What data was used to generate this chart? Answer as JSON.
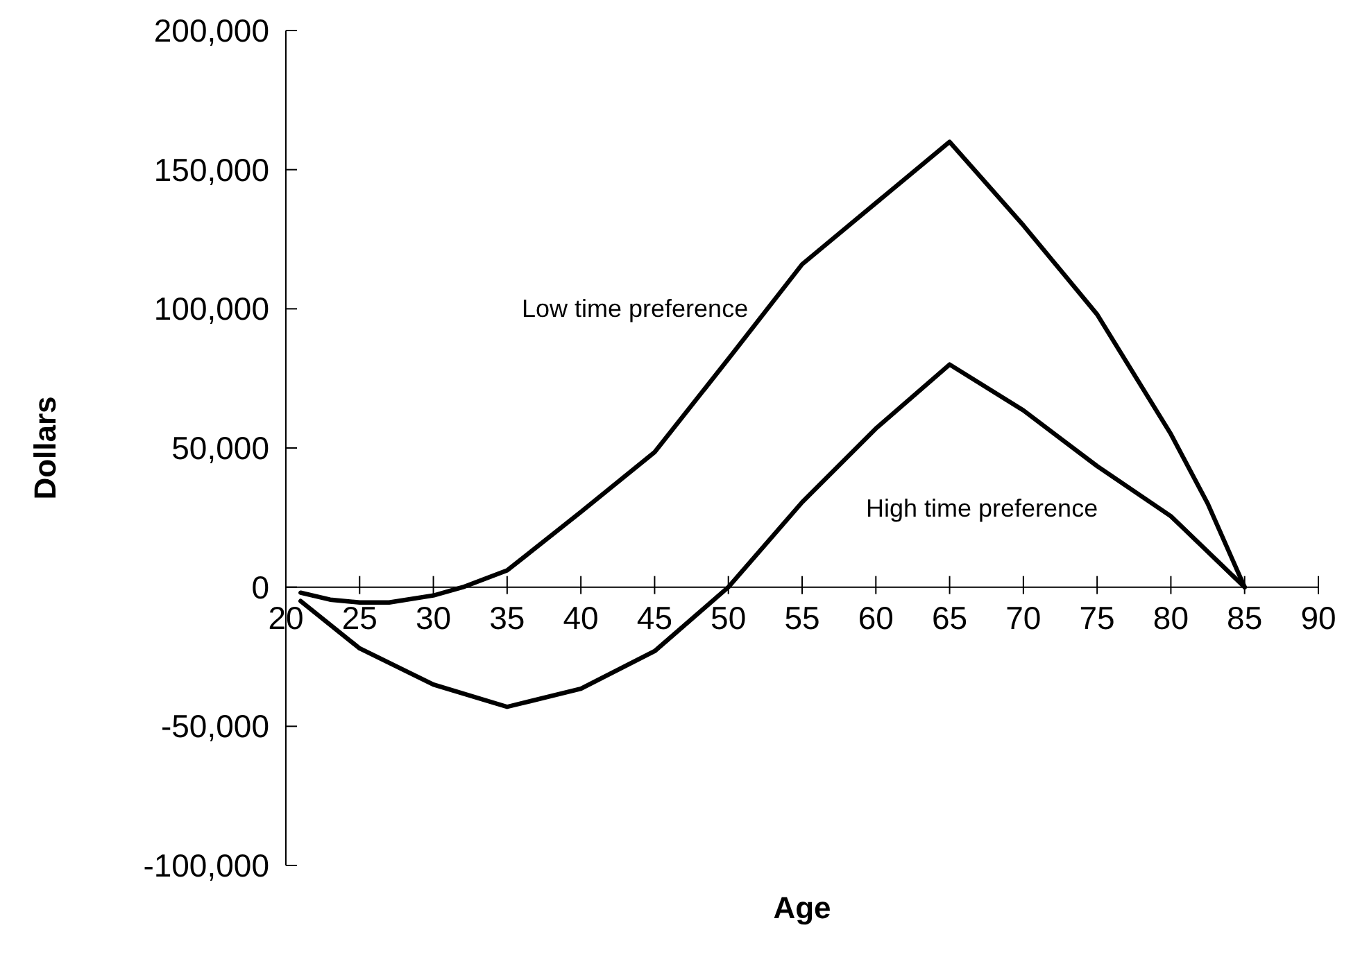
{
  "chart_data": {
    "type": "line",
    "xlabel": "Age",
    "ylabel": "Dollars",
    "xlim": [
      20,
      90
    ],
    "xticks": [
      20,
      25,
      30,
      35,
      40,
      45,
      50,
      55,
      60,
      65,
      70,
      75,
      80,
      85,
      90
    ],
    "ylim": [
      -100000,
      200000
    ],
    "yticks": [
      {
        "value": -100000,
        "label": "-100,000"
      },
      {
        "value": -50000,
        "label": "-50,000"
      },
      0,
      {
        "value": 50000,
        "label": "50,000"
      },
      {
        "value": 100000,
        "label": "100,000"
      },
      {
        "value": 150000,
        "label": "150,000"
      },
      {
        "value": 200000,
        "label": "200,000"
      }
    ],
    "grid": false,
    "marker": "none",
    "line_style": "solid",
    "series": [
      {
        "name": "Low time preference",
        "color": "#000000",
        "x": [
          21,
          23,
          25,
          27,
          30,
          32,
          35,
          40,
          45,
          50,
          55,
          60,
          65,
          70,
          75,
          80,
          82.5,
          85
        ],
        "values": [
          -2000,
          -4500,
          -5500,
          -5500,
          -3000,
          0,
          6000,
          27000,
          48500,
          82000,
          116000,
          138000,
          160000,
          130000,
          98000,
          55000,
          30000,
          0
        ]
      },
      {
        "name": "High time preference",
        "color": "#000000",
        "x": [
          21,
          25,
          30,
          35,
          40,
          45,
          50,
          55,
          60,
          65,
          70,
          75,
          80,
          85
        ],
        "values": [
          -5000,
          -22000,
          -35000,
          -43000,
          -36500,
          -23000,
          0,
          30500,
          57000,
          80000,
          63500,
          43500,
          25500,
          0
        ]
      }
    ]
  }
}
